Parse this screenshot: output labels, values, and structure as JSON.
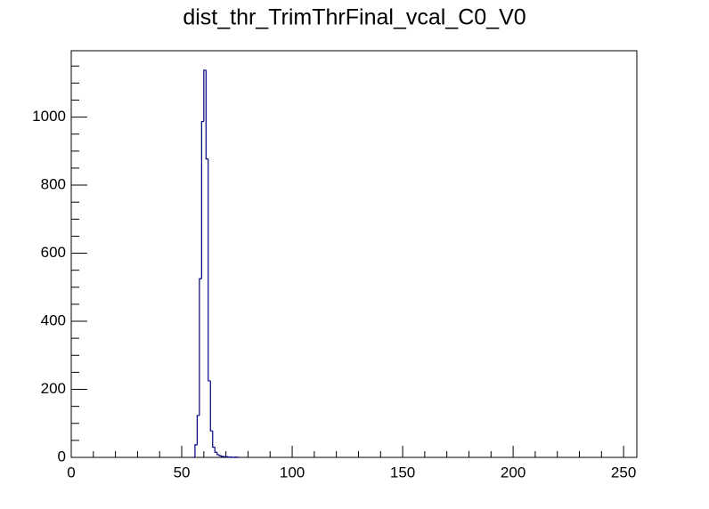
{
  "chart_data": {
    "type": "histogram",
    "title": "dist_thr_TrimThrFinal_vcal_C0_V0",
    "bins": [
      55,
      56,
      57,
      58,
      59,
      60,
      61,
      62,
      63,
      64,
      65,
      66,
      67,
      68,
      69,
      70,
      71,
      72,
      73,
      74,
      75,
      76
    ],
    "values": [
      0,
      37,
      123,
      525,
      987,
      1138,
      877,
      225,
      78,
      30,
      15,
      8,
      5,
      3,
      2,
      2,
      1,
      1,
      0,
      1,
      0
    ],
    "color": "#000080",
    "xlim": [
      0,
      256
    ],
    "xticks": [
      0,
      50,
      100,
      150,
      200,
      250
    ],
    "xminorticks": [
      10,
      20,
      30,
      40,
      60,
      70,
      80,
      90,
      110,
      120,
      130,
      140,
      160,
      170,
      180,
      190,
      210,
      220,
      230,
      240
    ],
    "ylim": [
      0,
      1195
    ],
    "yticks": [
      0,
      200,
      400,
      600,
      800,
      1000
    ],
    "yminorticks": [
      50,
      100,
      150,
      250,
      300,
      350,
      450,
      500,
      550,
      650,
      700,
      750,
      850,
      900,
      950,
      1050,
      1100,
      1150
    ]
  }
}
